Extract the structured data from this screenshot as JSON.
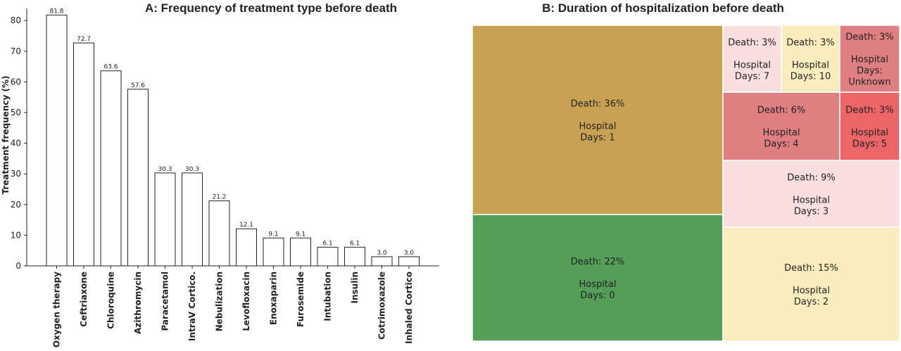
{
  "chart_data": [
    {
      "type": "bar",
      "title": "A: Frequency of treatment type before death",
      "xlabel": "",
      "ylabel": "Treatment frequency (%)",
      "ylim": [
        0,
        85
      ],
      "yticks": [
        0,
        10,
        20,
        30,
        40,
        50,
        60,
        70,
        80
      ],
      "grid": false,
      "categories": [
        "Oxygen therapy",
        "Ceftriaxone",
        "Chloroquine",
        "Azithromycin",
        "Paracetamol",
        "IntraV Cortico.",
        "Nebulization",
        "Levofloxacin",
        "Enoxaparin",
        "Furosemide",
        "Intubation",
        "Insulin",
        "Cotrimoxazole",
        "Inhaled Cortico"
      ],
      "values": [
        81.8,
        72.7,
        63.6,
        57.6,
        30.3,
        30.3,
        21.2,
        12.1,
        9.1,
        9.1,
        6.1,
        6.1,
        3.0,
        3.0
      ],
      "value_labels": [
        "81.8",
        "72.7",
        "63.6",
        "57.6",
        "30.3",
        "30.3",
        "21.2",
        "12.1",
        "9.1",
        "9.1",
        "6.1",
        "6.1",
        "3.0",
        "3.0"
      ],
      "bar_fill": "#ffffff",
      "bar_edge": "#222222"
    },
    {
      "type": "treemap",
      "title": "B:  Duration of hospitalization before death",
      "tiles": [
        {
          "death_label": "Death: 36%",
          "hosp_label": [
            "Hospital",
            "Days: 1"
          ],
          "value": 36,
          "color": "#c8a252"
        },
        {
          "death_label": "Death: 22%",
          "hosp_label": [
            "Hospital",
            "Days: 0"
          ],
          "value": 22,
          "color": "#559e5a"
        },
        {
          "death_label": "Death: 15%",
          "hosp_label": [
            "Hospital",
            "Days: 2"
          ],
          "value": 15,
          "color": "#fcedbe"
        },
        {
          "death_label": "Death: 9%",
          "hosp_label": [
            "Hospital",
            "Days: 3"
          ],
          "value": 9,
          "color": "#fbdede"
        },
        {
          "death_label": "Death: 6%",
          "hosp_label": [
            "Hospital",
            "Days: 4"
          ],
          "value": 6,
          "color": "#e07f82"
        },
        {
          "death_label": "Death: 3%",
          "hosp_label": [
            "Hospital",
            "Days: 5"
          ],
          "value": 3,
          "color": "#ec6668"
        },
        {
          "death_label": "Death: 3%",
          "hosp_label": [
            "Hospital",
            "Days: 7"
          ],
          "value": 3,
          "color": "#fbdede"
        },
        {
          "death_label": "Death: 3%",
          "hosp_label": [
            "Hospital",
            "Days: 10"
          ],
          "value": 3,
          "color": "#fcedbe"
        },
        {
          "death_label": "Death: 3%",
          "hosp_label": [
            "Hospital",
            "Days:",
            "Unknown"
          ],
          "value": 3,
          "color": "#e07f82"
        }
      ]
    }
  ]
}
